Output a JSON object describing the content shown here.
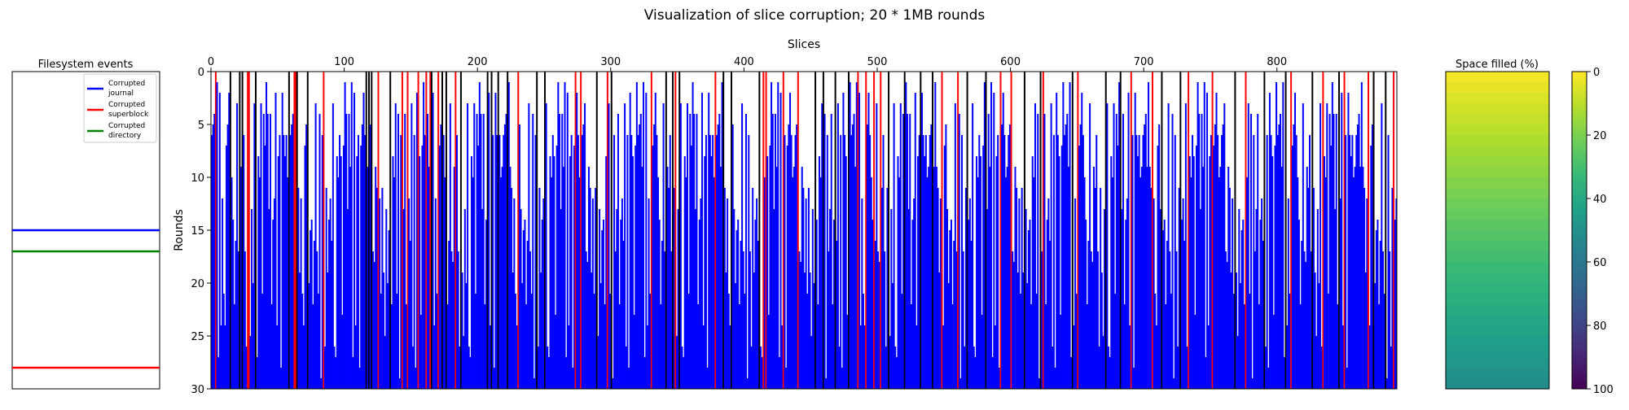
{
  "figure": {
    "title": "Visualization of slice corruption; 20 * 1MB rounds"
  },
  "chart_data": [
    {
      "type": "line",
      "title": "Filesystem events",
      "y_range": [
        0,
        30
      ],
      "y_inverted": true,
      "axes_visible": false,
      "legend_position": "top-right",
      "legend": [
        {
          "name": "Corrupted journal",
          "lines": [
            "Corrupted",
            "journal"
          ],
          "color": "#0000ff"
        },
        {
          "name": "Corrupted superblock",
          "lines": [
            "Corrupted",
            "superblock"
          ],
          "color": "#ff0000"
        },
        {
          "name": "Corrupted directory",
          "lines": [
            "Corrupted",
            "directory"
          ],
          "color": "#008000"
        }
      ],
      "events": [
        {
          "series": "Corrupted journal",
          "round": 15,
          "color": "#0000ff"
        },
        {
          "series": "Corrupted directory",
          "round": 17,
          "color": "#008000"
        },
        {
          "series": "Corrupted superblock",
          "round": 28,
          "color": "#ff0000"
        }
      ]
    },
    {
      "type": "bar",
      "title": "",
      "xlabel": "Slices",
      "ylabel": "Rounds",
      "x_position": "top",
      "xlim": [
        0,
        890
      ],
      "ylim": [
        0,
        30
      ],
      "y_inverted": true,
      "x_ticks": [
        0,
        100,
        200,
        300,
        400,
        500,
        600,
        700,
        800
      ],
      "y_ticks": [
        0,
        5,
        10,
        15,
        20,
        25,
        30
      ],
      "n_slices": 890,
      "categories_note": "Each slice shows the round in which it was first corrupted; bar fills from that round down to round 30. Colour indicates what the slice belongs to.",
      "colors": {
        "data": "#0000ff",
        "superblock": "#ff0000",
        "metadata": "#000000"
      },
      "data_corruption_rounds_sample": [
        6,
        22,
        27,
        6,
        21,
        26,
        13,
        5,
        16,
        8,
        28,
        24,
        11,
        4,
        4,
        3,
        10,
        2,
        7,
        19,
        22,
        9,
        17,
        3,
        6,
        5,
        25,
        14,
        1,
        18,
        21,
        8,
        2,
        13,
        12,
        27,
        9,
        4,
        23,
        6,
        20,
        16,
        2,
        11,
        29,
        7,
        10,
        15,
        3,
        24,
        19,
        6,
        1,
        9,
        14,
        26,
        8,
        12,
        17,
        4
      ],
      "superblock_slices_sample": [
        3,
        27,
        28,
        62,
        63,
        84,
        125,
        143,
        147,
        155,
        161,
        164,
        170,
        183,
        230,
        273,
        277,
        297,
        330,
        348,
        378,
        414,
        416,
        429,
        440,
        485,
        491,
        497,
        502,
        548,
        560,
        592,
        600,
        624,
        650,
        690,
        706,
        733,
        751,
        776,
        810,
        834,
        850,
        868,
        887
      ],
      "metadata_slices_sample": [
        14,
        21,
        23,
        33,
        58,
        64,
        72,
        116,
        118,
        120,
        134,
        165,
        173,
        176,
        187,
        207,
        210,
        215,
        222,
        244,
        250,
        289,
        300,
        341,
        346,
        351,
        384,
        390,
        411,
        453,
        459,
        468,
        478,
        508,
        520,
        532,
        541,
        567,
        581,
        610,
        622,
        646,
        671,
        682,
        713,
        727,
        768,
        790,
        806,
        826,
        846,
        872,
        881
      ]
    },
    {
      "type": "heatmap",
      "title": "Space filled (%)",
      "colormap": "viridis_r",
      "cmin": 0,
      "cmax": 100,
      "colorbar_ticks": [
        0,
        20,
        40,
        60,
        80,
        100
      ],
      "rows": 30,
      "values_sample": [
        1.7,
        3.4,
        5.1,
        6.8,
        8.5,
        10.2,
        11.9,
        13.6,
        15.3,
        17.0,
        18.7,
        20.4,
        22.1,
        23.8,
        25.5,
        27.2,
        28.9,
        30.6,
        32.3,
        34.0,
        35.7,
        37.4,
        39.1,
        40.8,
        42.5,
        44.2,
        45.9,
        47.6,
        49.3,
        51.0
      ]
    }
  ]
}
